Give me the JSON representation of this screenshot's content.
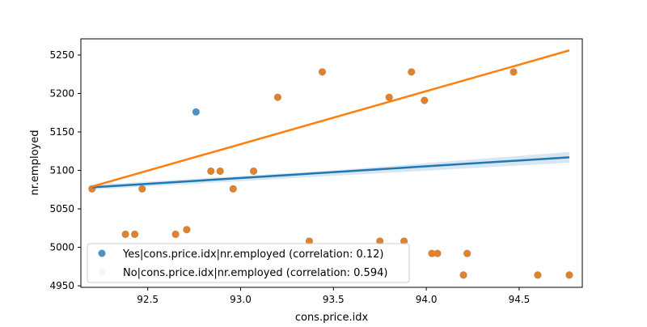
{
  "chart_data": {
    "type": "scatter",
    "xlabel": "cons.price.idx",
    "ylabel": "nr.employed",
    "xlim": [
      92.14,
      94.84
    ],
    "ylim": [
      4948,
      5271
    ],
    "xticks": [
      92.5,
      93.0,
      93.5,
      94.0,
      94.5
    ],
    "xtick_labels": [
      "92.5",
      "93.0",
      "93.5",
      "94.0",
      "94.5"
    ],
    "yticks": [
      4950,
      5000,
      5050,
      5100,
      5150,
      5200,
      5250
    ],
    "ytick_labels": [
      "4950",
      "5000",
      "5050",
      "5100",
      "5150",
      "5200",
      "5250"
    ],
    "grid": false,
    "legend_position": "lower-left",
    "series": [
      {
        "name": "Yes|cons.price.idx|nr.employed (correlation: 0.12)",
        "color": "#1f77b4",
        "points": [
          [
            92.2,
            5076
          ],
          [
            92.38,
            5017
          ],
          [
            92.43,
            5017
          ],
          [
            92.47,
            5076
          ],
          [
            92.65,
            5017
          ],
          [
            92.71,
            5023
          ],
          [
            92.76,
            5176
          ],
          [
            92.84,
            5099
          ],
          [
            92.89,
            5099
          ],
          [
            92.96,
            5076
          ],
          [
            93.07,
            5099
          ],
          [
            93.2,
            5195
          ],
          [
            93.37,
            5008
          ],
          [
            93.44,
            5228
          ],
          [
            93.75,
            5008
          ],
          [
            93.8,
            5195
          ],
          [
            93.88,
            5008
          ],
          [
            93.92,
            5228
          ],
          [
            93.99,
            5191
          ],
          [
            94.03,
            4992
          ],
          [
            94.06,
            4992
          ],
          [
            94.2,
            4964
          ],
          [
            94.22,
            4992
          ],
          [
            94.47,
            5228
          ],
          [
            94.6,
            4964
          ],
          [
            94.77,
            4964
          ]
        ],
        "fit_line": [
          [
            92.2,
            5078
          ],
          [
            94.77,
            5117
          ]
        ],
        "ci_band": [
          [
            92.2,
            5075,
            5081
          ],
          [
            93.5,
            5093,
            5100
          ],
          [
            94.77,
            5110,
            5124
          ]
        ]
      },
      {
        "name": "No|cons.price.idx|nr.employed (correlation: 0.594)",
        "color": "#ff7f0e",
        "points": [
          [
            92.2,
            5076
          ],
          [
            92.38,
            5017
          ],
          [
            92.43,
            5017
          ],
          [
            92.47,
            5076
          ],
          [
            92.65,
            5017
          ],
          [
            92.71,
            5023
          ],
          [
            92.84,
            5099
          ],
          [
            92.89,
            5099
          ],
          [
            92.96,
            5076
          ],
          [
            93.07,
            5099
          ],
          [
            93.2,
            5195
          ],
          [
            93.37,
            5008
          ],
          [
            93.44,
            5228
          ],
          [
            93.75,
            5008
          ],
          [
            93.8,
            5195
          ],
          [
            93.88,
            5008
          ],
          [
            93.92,
            5228
          ],
          [
            93.99,
            5191
          ],
          [
            94.03,
            4992
          ],
          [
            94.06,
            4992
          ],
          [
            94.2,
            4964
          ],
          [
            94.22,
            4992
          ],
          [
            94.47,
            5228
          ],
          [
            94.6,
            4964
          ],
          [
            94.77,
            4964
          ]
        ],
        "fit_line": [
          [
            92.2,
            5079
          ],
          [
            94.77,
            5256
          ]
        ]
      }
    ]
  }
}
